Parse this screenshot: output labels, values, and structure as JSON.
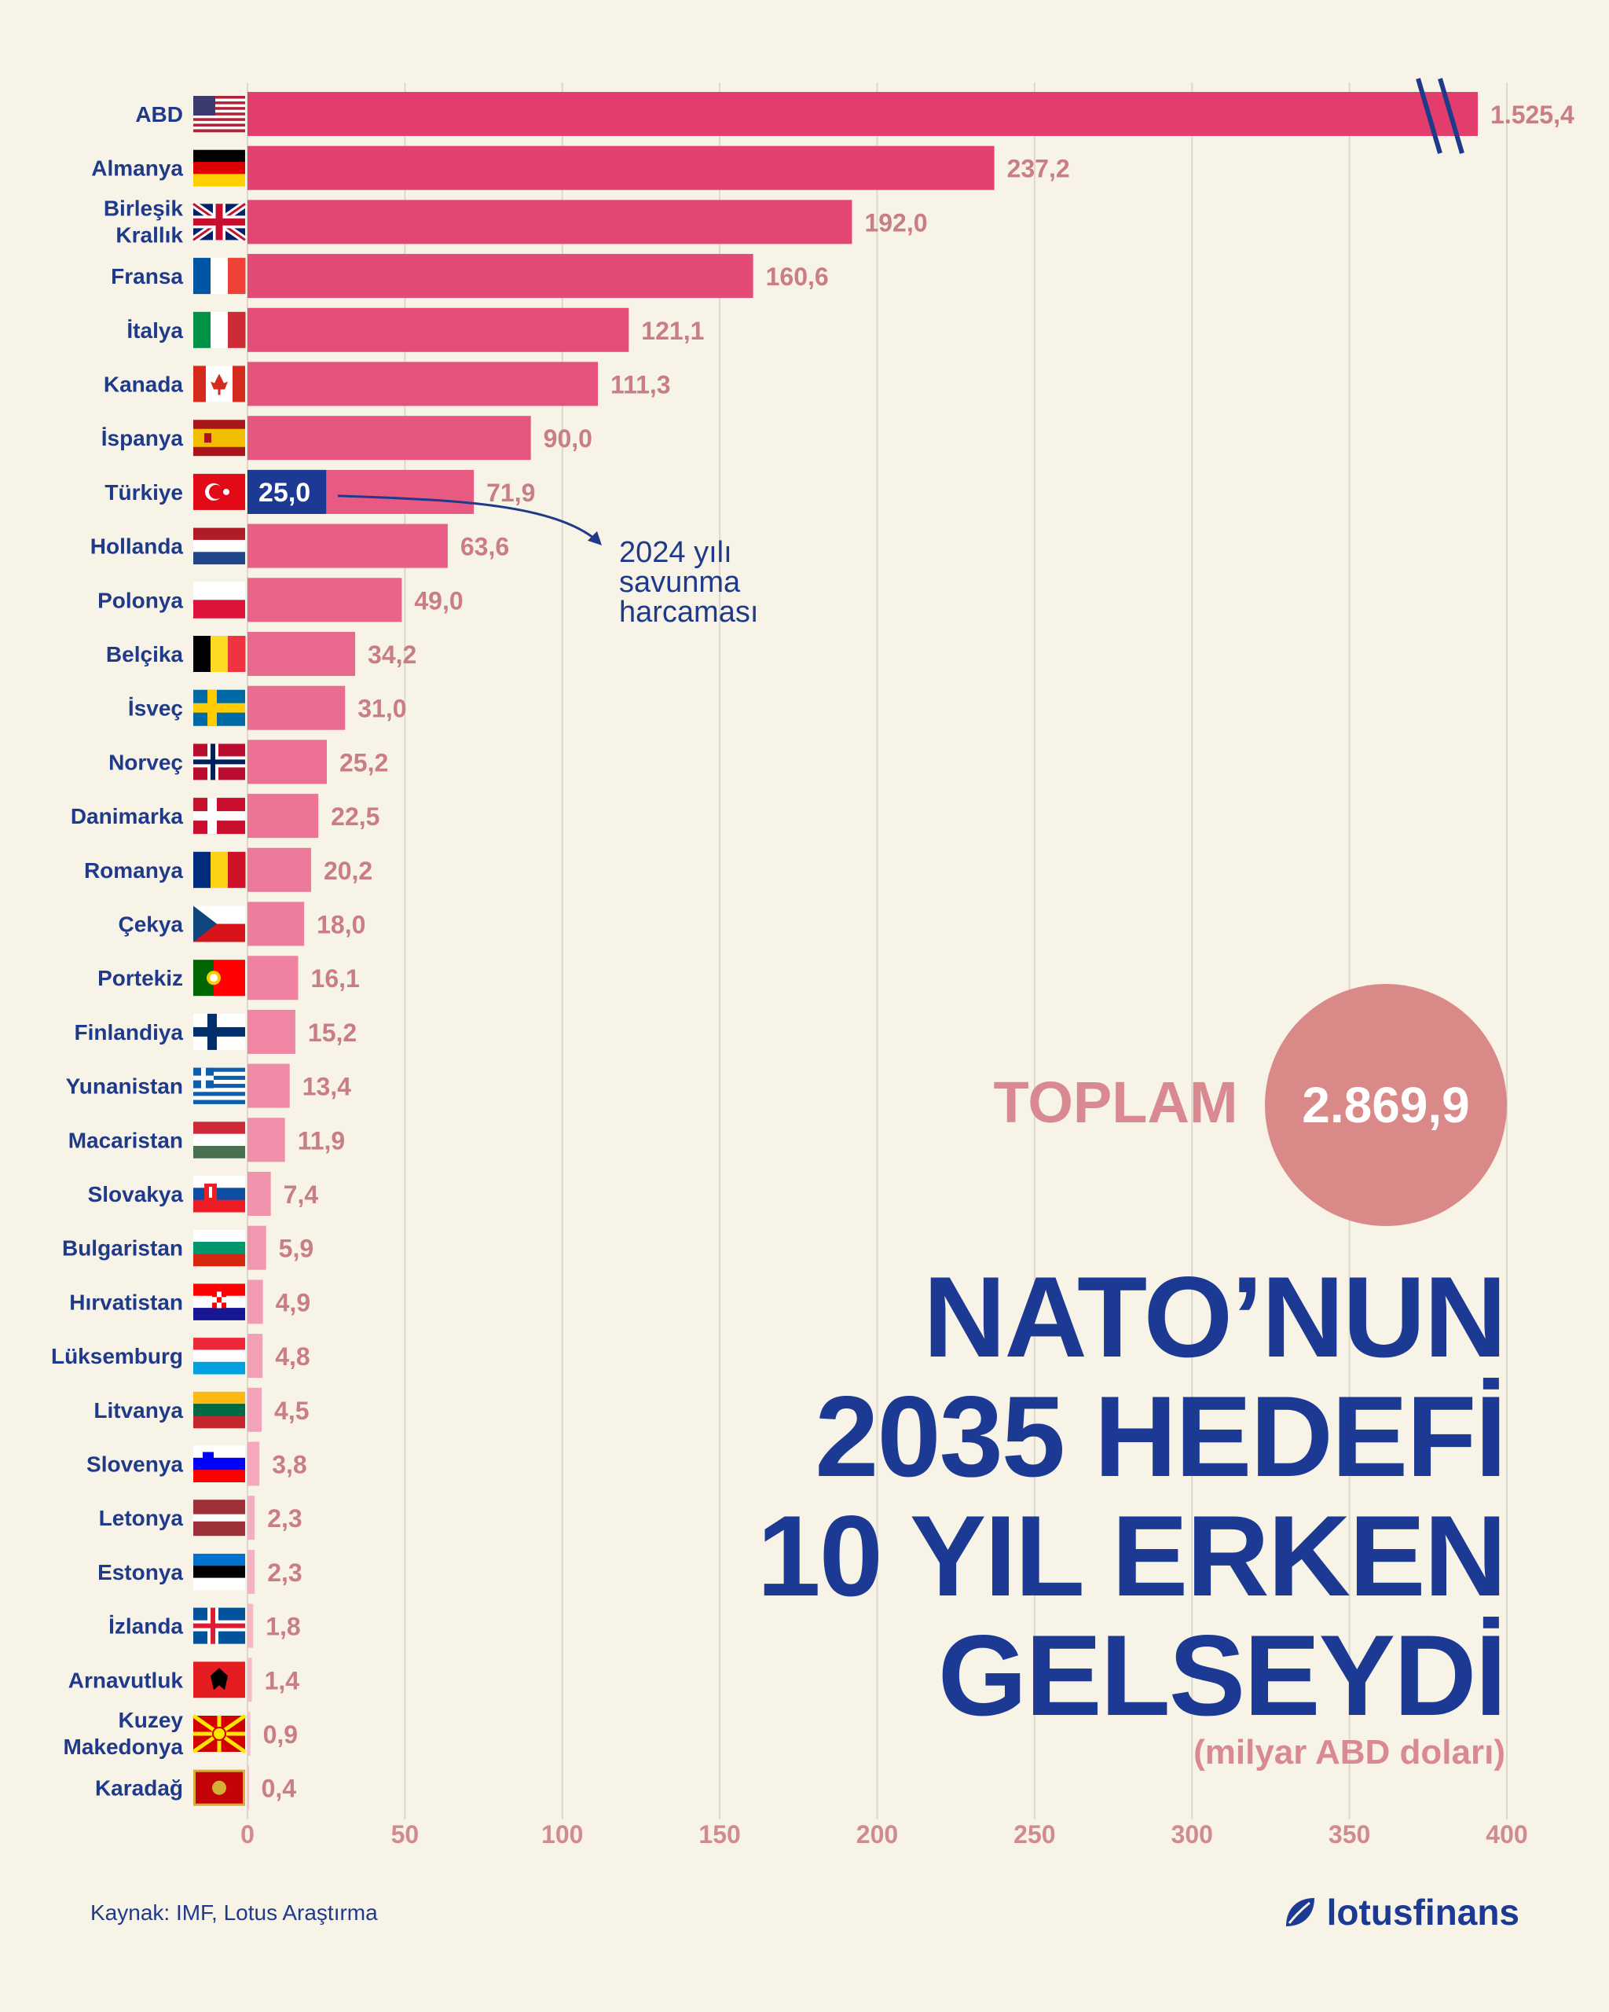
{
  "chart_data": {
    "type": "bar",
    "orientation": "horizontal",
    "categories": [
      "ABD",
      "Almanya",
      "Birleşik Krallık",
      "Fransa",
      "İtalya",
      "Kanada",
      "İspanya",
      "Türkiye",
      "Hollanda",
      "Polonya",
      "Belçika",
      "İsveç",
      "Norveç",
      "Danimarka",
      "Romanya",
      "Çekya",
      "Portekiz",
      "Finlandiya",
      "Yunanistan",
      "Macaristan",
      "Slovakya",
      "Bulgaristan",
      "Hırvatistan",
      "Lüksemburg",
      "Litvanya",
      "Slovenya",
      "Letonya",
      "Estonya",
      "İzlanda",
      "Arnavutluk",
      "Kuzey Makedonya",
      "Karadağ"
    ],
    "values": [
      1525.4,
      237.2,
      192.0,
      160.6,
      121.1,
      111.3,
      90.0,
      71.9,
      63.6,
      49.0,
      34.2,
      31.0,
      25.2,
      22.5,
      20.2,
      18.0,
      16.1,
      15.2,
      13.4,
      11.9,
      7.4,
      5.9,
      4.9,
      4.8,
      4.5,
      3.8,
      2.3,
      2.3,
      1.8,
      1.4,
      0.9,
      0.4
    ],
    "value_labels": [
      "1.525,4",
      "237,2",
      "192,0",
      "160,6",
      "121,1",
      "111,3",
      "90,0",
      "71,9",
      "63,6",
      "49,0",
      "34,2",
      "31,0",
      "25,2",
      "22,5",
      "20,2",
      "18,0",
      "16,1",
      "15,2",
      "13,4",
      "11,9",
      "7,4",
      "5,9",
      "4,9",
      "4,8",
      "4,5",
      "3,8",
      "2,3",
      "2,3",
      "1,8",
      "1,4",
      "0,9",
      "0,4"
    ],
    "flags": [
      "usa-flag",
      "germany-flag",
      "uk-flag",
      "france-flag",
      "italy-flag",
      "canada-flag",
      "spain-flag",
      "turkey-flag",
      "netherlands-flag",
      "poland-flag",
      "belgium-flag",
      "sweden-flag",
      "norway-flag",
      "denmark-flag",
      "romania-flag",
      "czechia-flag",
      "portugal-flag",
      "finland-flag",
      "greece-flag",
      "hungary-flag",
      "slovakia-flag",
      "bulgaria-flag",
      "croatia-flag",
      "luxembourg-flag",
      "lithuania-flag",
      "slovenia-flag",
      "latvia-flag",
      "estonia-flag",
      "iceland-flag",
      "albania-flag",
      "north-macedonia-flag",
      "montenegro-flag"
    ],
    "xlim": [
      0,
      400
    ],
    "xticks": [
      0,
      50,
      100,
      150,
      200,
      250,
      300,
      350,
      400
    ],
    "axis_break": "ABD",
    "grid": true,
    "highlight": {
      "country": "Türkiye",
      "value": 25.0,
      "label": "25,0",
      "annotation": [
        "2024 yılı",
        "savunma",
        "harcaması"
      ]
    },
    "colors": {
      "bar_top": "#e23d6c",
      "bar_bottom": "#f9c2d1",
      "highlight": "#1c3993",
      "value_text": "#c97d84",
      "label_text": "#1f3a8a"
    }
  },
  "total": {
    "label": "TOPLAM",
    "value": "2.869,9"
  },
  "title_lines": [
    "NATO’NUN",
    "2035 HEDEFİ",
    "10 YIL ERKEN",
    "GELSEYDİ"
  ],
  "unit": "(milyar ABD doları)",
  "source": "Kaynak: IMF, Lotus Araştırma",
  "brand": {
    "name": "lotusfinans",
    "icon": "lotus-leaf-icon"
  }
}
